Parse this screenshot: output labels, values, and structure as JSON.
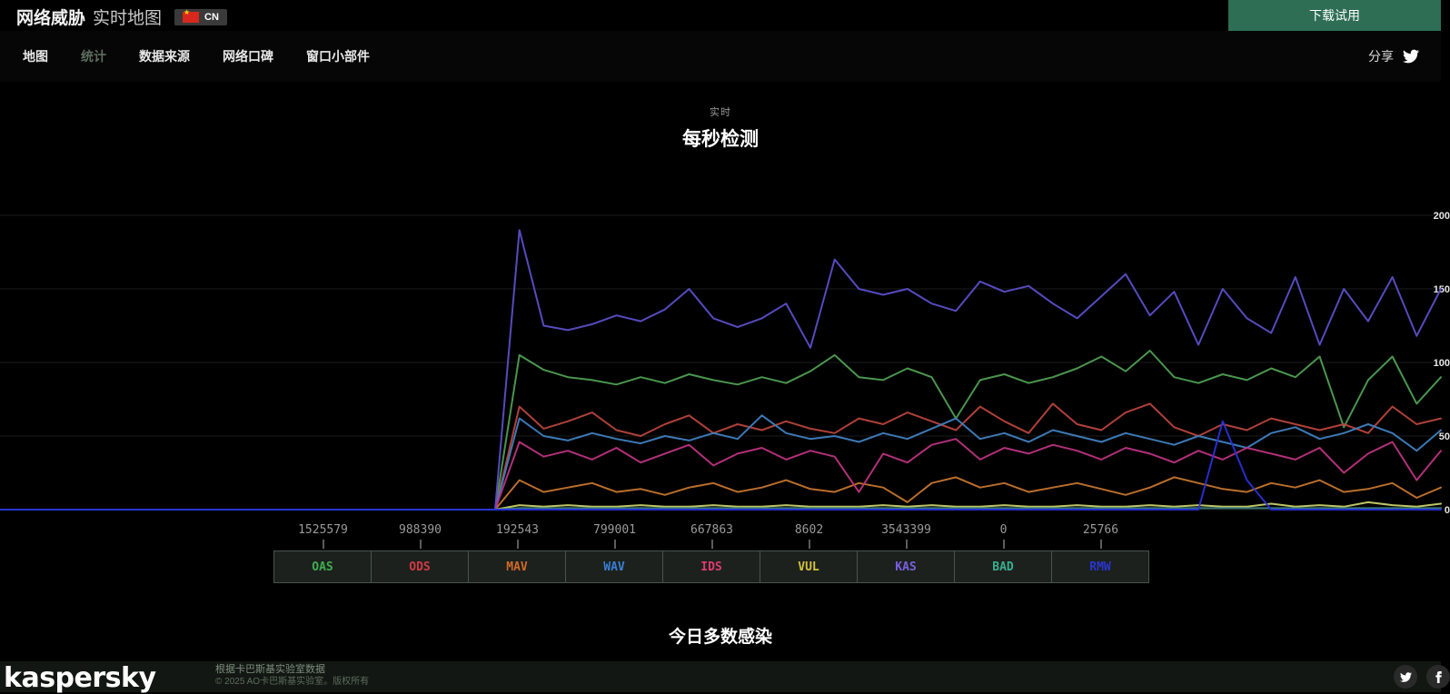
{
  "header": {
    "title_bold": "网络威胁",
    "title_light": "实时地图",
    "country_code": "CN",
    "download_button": "下载试用"
  },
  "nav": {
    "items": [
      {
        "key": "map",
        "label": "地图",
        "active": false
      },
      {
        "key": "statistics",
        "label": "统计",
        "active": true
      },
      {
        "key": "data-sources",
        "label": "数据来源",
        "active": false
      },
      {
        "key": "buzz",
        "label": "网络口碑",
        "active": false
      },
      {
        "key": "widget",
        "label": "窗口小部件",
        "active": false
      }
    ],
    "share_label": "分享"
  },
  "chart": {
    "subtitle": "实时",
    "title": "每秒检测"
  },
  "chart_data": {
    "type": "line",
    "title": "每秒检测",
    "subtitle": "实时",
    "ylim": [
      0,
      200
    ],
    "yticks": [
      0,
      50,
      100,
      150,
      200
    ],
    "grid": true,
    "x_axis": "rolling one-second detections, no x tick labels shown; lines flat at 0 on left third, live data on right two thirds",
    "series": [
      {
        "name": "OAS",
        "color": "#4e9e52",
        "values": [
          0,
          105,
          95,
          90,
          88,
          85,
          90,
          86,
          92,
          88,
          85,
          90,
          86,
          94,
          105,
          90,
          88,
          96,
          90,
          62,
          88,
          92,
          86,
          90,
          96,
          104,
          94,
          108,
          90,
          86,
          92,
          88,
          96,
          90,
          104,
          56,
          88,
          104,
          72,
          90
        ]
      },
      {
        "name": "ODS",
        "color": "#b8443c",
        "values": [
          0,
          70,
          55,
          60,
          66,
          54,
          50,
          58,
          64,
          52,
          58,
          54,
          60,
          55,
          52,
          62,
          58,
          66,
          60,
          54,
          70,
          60,
          52,
          72,
          58,
          54,
          66,
          72,
          56,
          50,
          58,
          54,
          62,
          58,
          54,
          58,
          52,
          70,
          58,
          62
        ]
      },
      {
        "name": "MAV",
        "color": "#c4742e",
        "values": [
          0,
          20,
          12,
          15,
          18,
          12,
          14,
          10,
          15,
          18,
          12,
          15,
          20,
          14,
          12,
          18,
          15,
          5,
          18,
          22,
          15,
          18,
          12,
          15,
          18,
          14,
          10,
          15,
          22,
          18,
          14,
          12,
          18,
          15,
          20,
          12,
          14,
          18,
          8,
          15
        ]
      },
      {
        "name": "WAV",
        "color": "#4080c0",
        "values": [
          0,
          62,
          50,
          47,
          52,
          48,
          45,
          50,
          47,
          52,
          48,
          64,
          52,
          48,
          50,
          46,
          52,
          48,
          55,
          62,
          48,
          52,
          46,
          54,
          50,
          46,
          52,
          48,
          44,
          50,
          46,
          42,
          52,
          56,
          48,
          52,
          58,
          52,
          40,
          54
        ]
      },
      {
        "name": "IDS",
        "color": "#bc3380",
        "values": [
          0,
          46,
          36,
          40,
          34,
          42,
          32,
          38,
          44,
          30,
          38,
          42,
          34,
          40,
          36,
          12,
          38,
          32,
          44,
          48,
          34,
          42,
          38,
          44,
          40,
          34,
          42,
          38,
          32,
          40,
          34,
          42,
          38,
          34,
          42,
          25,
          38,
          46,
          20,
          40
        ]
      },
      {
        "name": "VUL",
        "color": "#c8d06a",
        "values": [
          0,
          3,
          2,
          3,
          2,
          2,
          3,
          2,
          2,
          3,
          2,
          2,
          3,
          2,
          2,
          2,
          3,
          2,
          3,
          2,
          2,
          3,
          2,
          2,
          3,
          2,
          2,
          3,
          2,
          3,
          2,
          2,
          4,
          2,
          3,
          2,
          5,
          3,
          2,
          4
        ]
      },
      {
        "name": "KAS",
        "color": "#5b4fc8",
        "values": [
          0,
          190,
          125,
          122,
          126,
          132,
          128,
          136,
          150,
          130,
          124,
          130,
          140,
          110,
          170,
          150,
          146,
          150,
          140,
          135,
          155,
          148,
          152,
          140,
          130,
          145,
          160,
          132,
          148,
          112,
          150,
          130,
          120,
          158,
          112,
          150,
          128,
          158,
          118,
          150
        ]
      },
      {
        "name": "BAD",
        "color": "#3a8080",
        "values": [
          0,
          1,
          1,
          1,
          1,
          1,
          1,
          1,
          1,
          1,
          1,
          1,
          1,
          1,
          1,
          1,
          1,
          1,
          1,
          1,
          1,
          1,
          1,
          1,
          1,
          1,
          1,
          1,
          1,
          1,
          1,
          1,
          1,
          1,
          1,
          1,
          1,
          1,
          1,
          1
        ]
      },
      {
        "name": "RMW",
        "color": "#2830d8",
        "values": [
          0,
          0,
          0,
          0,
          0,
          0,
          0,
          0,
          0,
          0,
          0,
          0,
          0,
          0,
          0,
          0,
          0,
          0,
          0,
          0,
          0,
          0,
          0,
          0,
          0,
          0,
          0,
          0,
          0,
          0,
          60,
          20,
          0,
          0,
          0,
          0,
          0,
          0,
          0,
          0
        ]
      }
    ]
  },
  "legend": {
    "items": [
      {
        "code": "OAS",
        "count": "1525579",
        "color": "#3fae4f"
      },
      {
        "code": "ODS",
        "count": "988390",
        "color": "#d03a45"
      },
      {
        "code": "MAV",
        "count": "192543",
        "color": "#d06a2a"
      },
      {
        "code": "WAV",
        "count": "799001",
        "color": "#3a7fd5"
      },
      {
        "code": "IDS",
        "count": "667863",
        "color": "#e03a6f"
      },
      {
        "code": "VUL",
        "count": "8602",
        "color": "#d4c23a"
      },
      {
        "code": "KAS",
        "count": "3543399",
        "color": "#7a5fe0"
      },
      {
        "code": "BAD",
        "count": "0",
        "color": "#3aae8f"
      },
      {
        "code": "RMW",
        "count": "25766",
        "color": "#2a35d0"
      }
    ]
  },
  "sections": {
    "most_infected_today": "今日多数感染"
  },
  "footer": {
    "logo": "kaspersky",
    "line1": "根据卡巴斯基实验室数据",
    "line2": "© 2025 AO卡巴斯基实验室。版权所有"
  }
}
